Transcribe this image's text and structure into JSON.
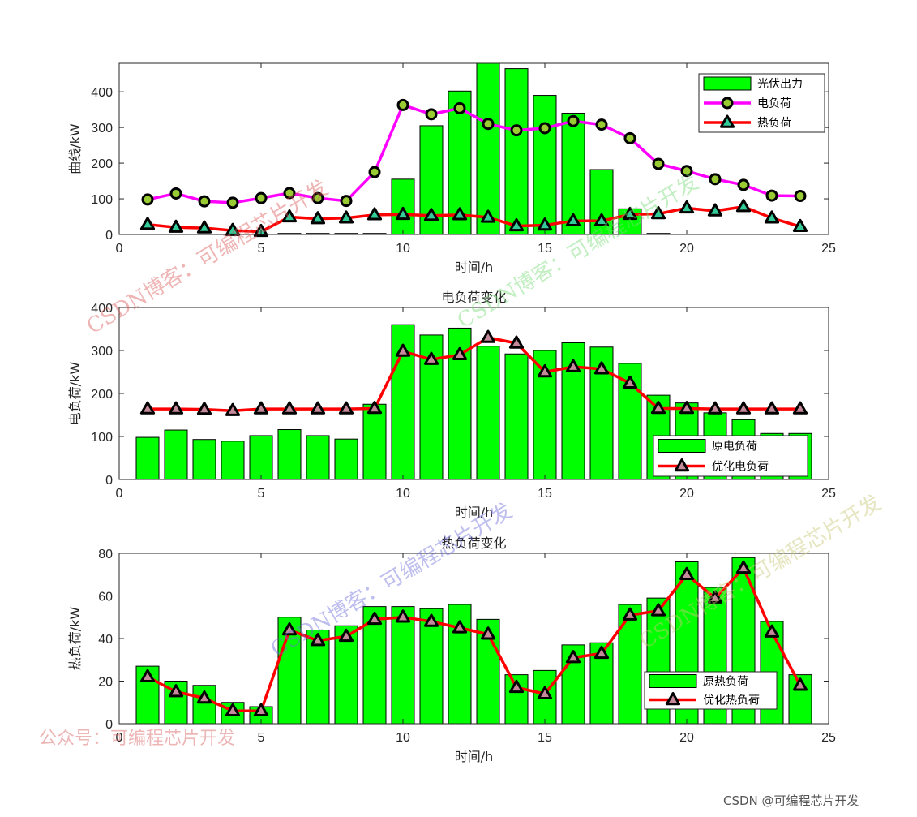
{
  "chart_data": [
    {
      "type": "bar+line",
      "title": "",
      "xlabel": "时间/h",
      "ylabel": "曲线/kW",
      "xlim": [
        0,
        25
      ],
      "ylim": [
        0,
        480
      ],
      "xticks": [
        0,
        5,
        10,
        15,
        20,
        25
      ],
      "yticks": [
        0,
        100,
        200,
        300,
        400
      ],
      "x": [
        1,
        2,
        3,
        4,
        5,
        6,
        7,
        8,
        9,
        10,
        11,
        12,
        13,
        14,
        15,
        16,
        17,
        18,
        19,
        20,
        21,
        22,
        23,
        24
      ],
      "series": [
        {
          "name": "光伏出力",
          "kind": "bar",
          "color": "#00ff00",
          "values": [
            0,
            0,
            0,
            0,
            0,
            3,
            3,
            3,
            3,
            155,
            305,
            402,
            480,
            465,
            390,
            340,
            182,
            72,
            3,
            0,
            0,
            0,
            0,
            0
          ]
        },
        {
          "name": "电负荷",
          "kind": "line",
          "color": "#ff00ff",
          "marker": "circle",
          "marker_color": "#99cc33",
          "values": [
            98,
            115,
            93,
            89,
            102,
            116,
            102,
            94,
            175,
            363,
            337,
            354,
            310,
            292,
            298,
            318,
            308,
            270,
            198,
            178,
            155,
            139,
            109,
            108
          ]
        },
        {
          "name": "热负荷",
          "kind": "line",
          "color": "#ff0000",
          "marker": "triangle",
          "marker_color": "#33cc99",
          "values": [
            28,
            20,
            18,
            11,
            8,
            49,
            44,
            46,
            55,
            56,
            53,
            55,
            48,
            24,
            26,
            38,
            38,
            56,
            58,
            74,
            66,
            78,
            46,
            22
          ]
        }
      ],
      "legend_position": "top-right"
    },
    {
      "type": "bar+line",
      "title": "电负荷变化",
      "xlabel": "时间/h",
      "ylabel": "电负荷/kW",
      "xlim": [
        0,
        25
      ],
      "ylim": [
        0,
        400
      ],
      "xticks": [
        0,
        5,
        10,
        15,
        20,
        25
      ],
      "yticks": [
        0,
        100,
        200,
        300,
        400
      ],
      "x": [
        1,
        2,
        3,
        4,
        5,
        6,
        7,
        8,
        9,
        10,
        11,
        12,
        13,
        14,
        15,
        16,
        17,
        18,
        19,
        20,
        21,
        22,
        23,
        24
      ],
      "series": [
        {
          "name": "原电负荷",
          "kind": "bar",
          "color": "#00ff00",
          "values": [
            98,
            115,
            93,
            89,
            102,
            116,
            102,
            94,
            175,
            360,
            336,
            352,
            310,
            292,
            300,
            318,
            308,
            270,
            196,
            178,
            155,
            139,
            107,
            107
          ]
        },
        {
          "name": "优化电负荷",
          "kind": "line",
          "color": "#ff0000",
          "marker": "triangle",
          "marker_color": "#c48a9a",
          "values": [
            164,
            164,
            163,
            160,
            164,
            164,
            164,
            164,
            165,
            298,
            279,
            290,
            330,
            317,
            250,
            262,
            257,
            224,
            165,
            165,
            164,
            164,
            164,
            164
          ]
        }
      ],
      "legend_position": "bottom-right"
    },
    {
      "type": "bar+line",
      "title": "热负荷变化",
      "xlabel": "时间/h",
      "ylabel": "热负荷/kW",
      "xlim": [
        0,
        25
      ],
      "ylim": [
        0,
        80
      ],
      "xticks": [
        0,
        5,
        10,
        15,
        20,
        25
      ],
      "yticks": [
        0,
        20,
        40,
        60,
        80
      ],
      "x": [
        1,
        2,
        3,
        4,
        5,
        6,
        7,
        8,
        9,
        10,
        11,
        12,
        13,
        14,
        15,
        16,
        17,
        18,
        19,
        20,
        21,
        22,
        23,
        24
      ],
      "series": [
        {
          "name": "原热负荷",
          "kind": "bar",
          "color": "#00ff00",
          "values": [
            27,
            20,
            18,
            10,
            8,
            50,
            44,
            46,
            55,
            55,
            54,
            56,
            49,
            23,
            25,
            37,
            38,
            56,
            59,
            76,
            64,
            78,
            48,
            23
          ]
        },
        {
          "name": "优化热负荷",
          "kind": "line",
          "color": "#ff0000",
          "marker": "triangle",
          "marker_color": "#c48a9a",
          "values": [
            22,
            15,
            12,
            6,
            6,
            44,
            39,
            41,
            49,
            50,
            48,
            45,
            42,
            17,
            14,
            31,
            33,
            51,
            53,
            70,
            59,
            73,
            43,
            18
          ]
        }
      ],
      "legend_position": "bottom-right"
    }
  ],
  "watermarks": [
    "CSDN博客：可编程芯片开发",
    "公众号：可编程芯片开发"
  ],
  "credit": "CSDN @可编程芯片开发"
}
